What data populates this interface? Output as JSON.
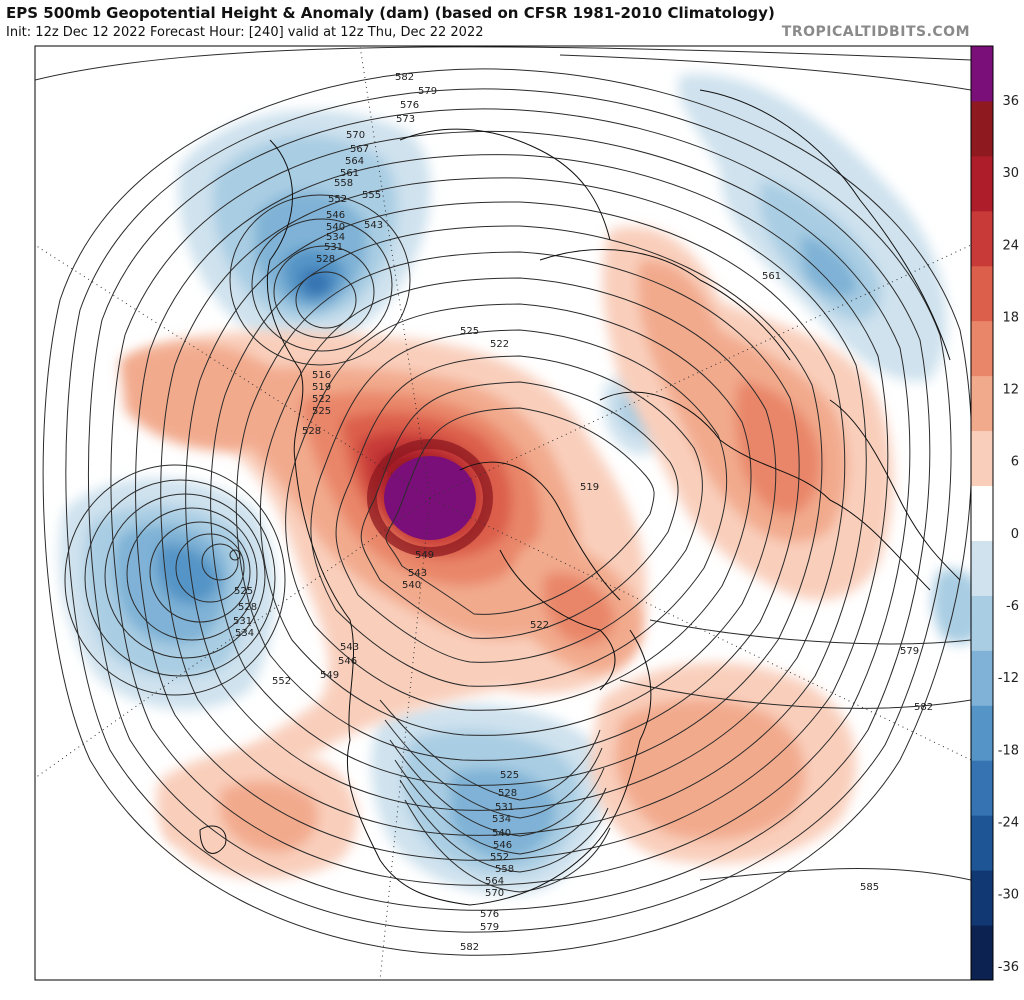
{
  "header": {
    "title": "EPS 500mb Geopotential Height & Anomaly (dam) (based on CFSR 1981-2010 Climatology)",
    "subtitle": "Init: 12z Dec 12 2022   Forecast Hour: [240]   valid at 12z Thu, Dec 22 2022",
    "brand": "TROPICALTIDBITS.COM"
  },
  "colorbar": {
    "labels": [
      "36",
      "30",
      "24",
      "18",
      "12",
      "6",
      "0",
      "-6",
      "-12",
      "-18",
      "-24",
      "-30",
      "-36"
    ],
    "colors": [
      "#7b0f7a",
      "#8e1a20",
      "#ad1e2a",
      "#c73a37",
      "#dc5f4c",
      "#e98669",
      "#f2aa8d",
      "#f9cfbc",
      "#ffffff",
      "#cfe2ee",
      "#a9cde3",
      "#7fb2d6",
      "#5494c6",
      "#3573b2",
      "#1d5595",
      "#123873",
      "#0c2250"
    ]
  },
  "contour_labels": [
    "582",
    "579",
    "576",
    "573",
    "570",
    "567",
    "564",
    "561",
    "558",
    "555",
    "552",
    "546",
    "543",
    "540",
    "534",
    "531",
    "528",
    "525",
    "522",
    "519",
    "516",
    "525",
    "522",
    "528",
    "519",
    "549",
    "543",
    "540",
    "543",
    "546",
    "549",
    "552",
    "525",
    "528",
    "531",
    "534",
    "522",
    "561",
    "579",
    "582",
    "585",
    "525",
    "528",
    "531",
    "534",
    "540",
    "546",
    "552",
    "558",
    "564",
    "570",
    "576",
    "579",
    "582"
  ],
  "map_icons": {
    "max_anomaly_marker": "closed-high-center",
    "low_marker": "closed-low-center"
  }
}
